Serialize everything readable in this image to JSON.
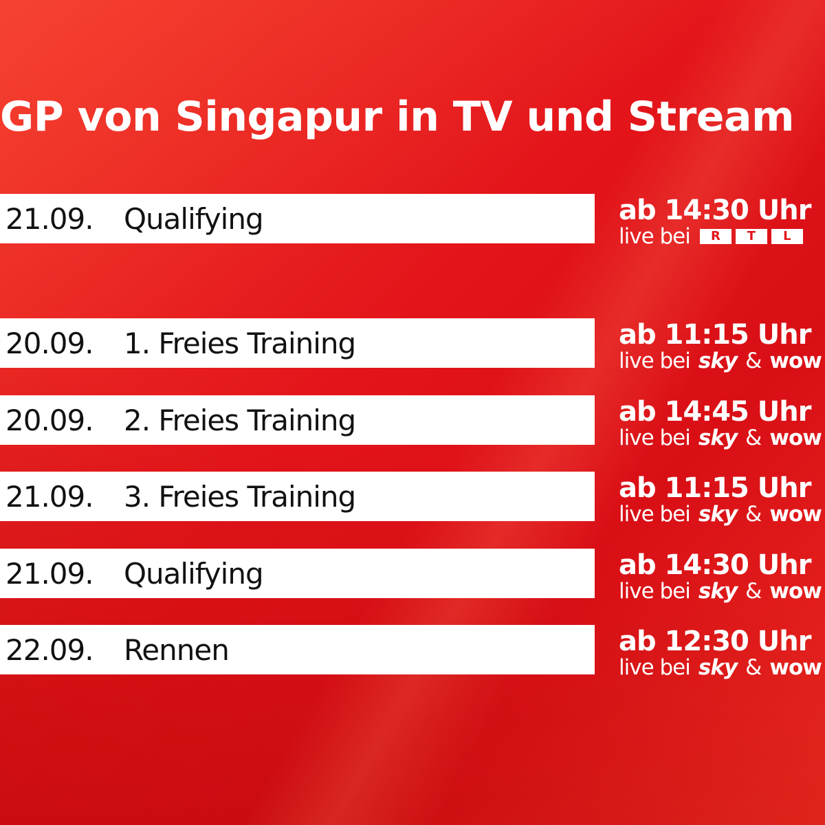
{
  "header": {
    "title": "GP von Singapur in TV und Stream"
  },
  "rows": [
    {
      "date": "21.09.",
      "event": "Qualifying",
      "time": "ab 14:30 Uhr",
      "live": "live bei",
      "logo": "rtl",
      "channel_parts": [
        "R",
        "T",
        "L"
      ]
    },
    {
      "date": "20.09.",
      "event": "1. Freies Training",
      "time": "ab 11:15 Uhr",
      "live": "live bei",
      "logo": "sky",
      "channel_parts": [
        "sky",
        "&",
        "wow"
      ]
    },
    {
      "date": "20.09.",
      "event": "2. Freies Training",
      "time": "ab 14:45 Uhr",
      "live": "live bei",
      "logo": "sky",
      "channel_parts": [
        "sky",
        "&",
        "wow"
      ]
    },
    {
      "date": "21.09.",
      "event": "3. Freies Training",
      "time": "ab 11:15 Uhr",
      "live": "live bei",
      "logo": "sky",
      "channel_parts": [
        "sky",
        "&",
        "wow"
      ]
    },
    {
      "date": "21.09.",
      "event": "Qualifying",
      "time": "ab 14:30 Uhr",
      "live": "live bei",
      "logo": "sky",
      "channel_parts": [
        "sky",
        "&",
        "wow"
      ]
    },
    {
      "date": "22.09.",
      "event": "Rennen",
      "time": "ab 12:30 Uhr",
      "live": "live bei",
      "logo": "sky",
      "channel_parts": [
        "sky",
        "&",
        "wow"
      ]
    }
  ]
}
